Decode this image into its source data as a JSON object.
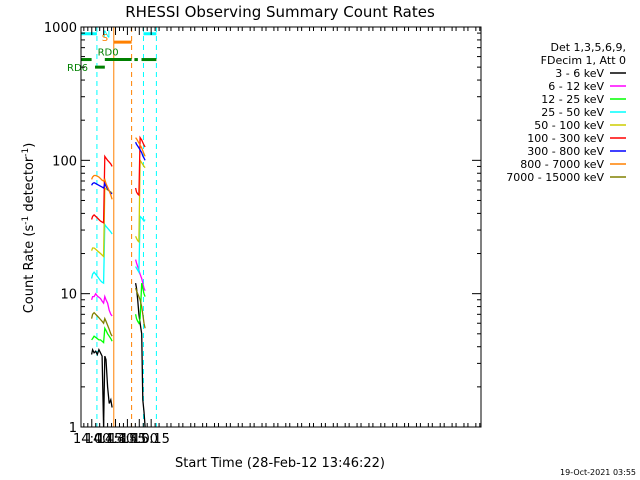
{
  "chart_data": {
    "type": "line",
    "title": "RHESSI Observing Summary Count Rates",
    "xlabel": "Start Time (28-Feb-12 13:46:22)",
    "ylabel_main": "Count Rate (s",
    "ylabel_sup1": "-1",
    "ylabel_mid": " detector",
    "ylabel_sup2": "-1",
    "ylabel_end": ")",
    "yscale": "log",
    "ylim": [
      1,
      1000
    ],
    "xlim_minutes": [
      826.4,
      1331.5
    ],
    "x_ticks": [
      {
        "label": "14:00",
        "minute": 840
      },
      {
        "label": "14:15",
        "minute": 855
      },
      {
        "label": "14:30",
        "minute": 870
      },
      {
        "label": "14:45",
        "minute": 885
      },
      {
        "label": "15:00",
        "minute": 900
      },
      {
        "label": "15:15",
        "minute": 915
      }
    ],
    "y_ticks": [
      {
        "label": "1",
        "value": 1
      },
      {
        "label": "10",
        "value": 10
      },
      {
        "label": "100",
        "value": 100
      },
      {
        "label": "1000",
        "value": 1000
      }
    ],
    "legend": {
      "header1": "Det 1,3,5,6,9,",
      "header2": "FDecim 1, Att 0",
      "placement": "right"
    },
    "series": [
      {
        "name": "3 - 6 keV",
        "color": "#000000",
        "points": [
          [
            839.8,
            3.5
          ],
          [
            841,
            3.8
          ],
          [
            843,
            3.6
          ],
          [
            845,
            3.7
          ],
          [
            847,
            3.5
          ],
          [
            849,
            3.8
          ],
          [
            851,
            3.6
          ],
          [
            853,
            3.4
          ],
          [
            855,
            1.0
          ],
          [
            856.5,
            3.4
          ],
          [
            858,
            3.2
          ],
          [
            860,
            2.0
          ],
          [
            862,
            1.5
          ],
          [
            864,
            1.6
          ],
          [
            865.7,
            1.4
          ],
          [
            895.3,
            12
          ],
          [
            896.5,
            11
          ],
          [
            898,
            9
          ],
          [
            899.5,
            7
          ],
          [
            901,
            6
          ],
          [
            903,
            5
          ],
          [
            904.5,
            1.6
          ],
          [
            906,
            1.3
          ],
          [
            907.3,
            1.0
          ]
        ]
      },
      {
        "name": "6 - 12 keV",
        "color": "#ff00ff",
        "points": [
          [
            839.8,
            9
          ],
          [
            841,
            9.5
          ],
          [
            843,
            9.5
          ],
          [
            845,
            10
          ],
          [
            847,
            9.6
          ],
          [
            849,
            9.4
          ],
          [
            851,
            9.2
          ],
          [
            853,
            8.8
          ],
          [
            855,
            8.5
          ],
          [
            856.5,
            9.5
          ],
          [
            858,
            9
          ],
          [
            860,
            8.5
          ],
          [
            862,
            7.5
          ],
          [
            864,
            7
          ],
          [
            865.7,
            6.8
          ],
          [
            895.3,
            18
          ],
          [
            896.5,
            17
          ],
          [
            898,
            16
          ],
          [
            899.5,
            15
          ],
          [
            901,
            14
          ],
          [
            903,
            13
          ],
          [
            904.5,
            12
          ],
          [
            906,
            11
          ],
          [
            907.3,
            10.5
          ]
        ]
      },
      {
        "name": "12 - 25 keV",
        "color": "#00ff00",
        "points": [
          [
            839.8,
            4.5
          ],
          [
            841,
            4.6
          ],
          [
            843,
            4.8
          ],
          [
            845,
            4.7
          ],
          [
            847,
            4.6
          ],
          [
            849,
            4.5
          ],
          [
            851,
            4.5
          ],
          [
            853,
            4.4
          ],
          [
            855,
            4.3
          ],
          [
            856.5,
            5.5
          ],
          [
            858,
            5.3
          ],
          [
            860,
            5
          ],
          [
            862,
            4.8
          ],
          [
            864,
            4.6
          ],
          [
            865.7,
            4.4
          ],
          [
            895.3,
            7
          ],
          [
            896.5,
            6.5
          ],
          [
            898,
            6.2
          ],
          [
            899.5,
            6
          ],
          [
            901,
            6.5
          ],
          [
            903,
            12
          ],
          [
            904.5,
            11
          ],
          [
            906,
            10
          ],
          [
            907.3,
            9.5
          ]
        ]
      },
      {
        "name": "25 - 50 keV",
        "color": "#00ffff",
        "points": [
          [
            839.8,
            13
          ],
          [
            841,
            14
          ],
          [
            843,
            14.5
          ],
          [
            845,
            14
          ],
          [
            847,
            13.5
          ],
          [
            849,
            13
          ],
          [
            851,
            12.5
          ],
          [
            853,
            12.2
          ],
          [
            855,
            12
          ],
          [
            856.5,
            33
          ],
          [
            858,
            32
          ],
          [
            860,
            31
          ],
          [
            862,
            30
          ],
          [
            864,
            29
          ],
          [
            865.7,
            28
          ],
          [
            895.3,
            16
          ],
          [
            896.5,
            15.5
          ],
          [
            898,
            15
          ],
          [
            899.5,
            14.5
          ],
          [
            901,
            38
          ],
          [
            903,
            37
          ],
          [
            904.5,
            36
          ],
          [
            906,
            35
          ],
          [
            907.3,
            36
          ]
        ]
      },
      {
        "name": "50 - 100 keV",
        "color": "#cccc00",
        "points": [
          [
            839.8,
            21
          ],
          [
            841,
            22
          ],
          [
            843,
            22
          ],
          [
            845,
            21.5
          ],
          [
            847,
            21
          ],
          [
            849,
            20.5
          ],
          [
            851,
            20
          ],
          [
            853,
            19.5
          ],
          [
            855,
            19
          ],
          [
            856.5,
            62
          ],
          [
            858,
            61
          ],
          [
            860,
            60
          ],
          [
            862,
            59
          ],
          [
            864,
            58
          ],
          [
            865.7,
            57
          ],
          [
            895.3,
            27
          ],
          [
            896.5,
            26
          ],
          [
            898,
            25
          ],
          [
            899.5,
            24.5
          ],
          [
            901,
            100
          ],
          [
            903,
            96
          ],
          [
            904.5,
            93
          ],
          [
            906,
            90
          ],
          [
            907.3,
            88
          ]
        ]
      },
      {
        "name": "100 - 300 keV",
        "color": "#ff0000",
        "points": [
          [
            839.8,
            36
          ],
          [
            841,
            38
          ],
          [
            843,
            39
          ],
          [
            845,
            38
          ],
          [
            847,
            37
          ],
          [
            849,
            36
          ],
          [
            851,
            35
          ],
          [
            853,
            34.5
          ],
          [
            855,
            34
          ],
          [
            856.5,
            107
          ],
          [
            858,
            104
          ],
          [
            860,
            100
          ],
          [
            862,
            97
          ],
          [
            864,
            94
          ],
          [
            865.7,
            90
          ],
          [
            895.3,
            62
          ],
          [
            896.5,
            58
          ],
          [
            898,
            56
          ],
          [
            899.5,
            55
          ],
          [
            901,
            148
          ],
          [
            903,
            142
          ],
          [
            904.5,
            136
          ],
          [
            906,
            130
          ],
          [
            907.3,
            126
          ]
        ]
      },
      {
        "name": "300 - 800 keV",
        "color": "#0000ff",
        "points": [
          [
            839.8,
            65
          ],
          [
            841,
            67
          ],
          [
            843,
            68
          ],
          [
            845,
            67
          ],
          [
            847,
            66
          ],
          [
            849,
            65
          ],
          [
            851,
            64
          ],
          [
            853,
            63
          ],
          [
            855,
            62
          ],
          [
            856.5,
            67
          ],
          [
            858,
            64
          ],
          [
            860,
            61
          ],
          [
            862,
            59
          ],
          [
            864,
            57
          ],
          [
            865.7,
            56
          ],
          [
            895.3,
            137
          ],
          [
            896.5,
            132
          ],
          [
            898,
            128
          ],
          [
            899.5,
            124
          ],
          [
            901,
            120
          ],
          [
            903,
            114
          ],
          [
            904.5,
            108
          ],
          [
            906,
            104
          ],
          [
            907.3,
            100
          ]
        ]
      },
      {
        "name": "800 - 7000 keV",
        "color": "#ff8000",
        "points": [
          [
            839.8,
            72
          ],
          [
            841,
            75
          ],
          [
            843,
            77
          ],
          [
            845,
            77
          ],
          [
            847,
            76
          ],
          [
            849,
            75
          ],
          [
            851,
            73
          ],
          [
            853,
            71
          ],
          [
            855,
            70
          ],
          [
            856.5,
            72
          ],
          [
            858,
            67
          ],
          [
            860,
            63
          ],
          [
            862,
            59
          ],
          [
            864,
            55
          ],
          [
            865.7,
            51
          ],
          [
            895.3,
            148
          ],
          [
            896.5,
            145
          ],
          [
            898,
            140
          ],
          [
            899.5,
            135
          ],
          [
            901,
            130
          ],
          [
            903,
            124
          ],
          [
            904.5,
            118
          ],
          [
            906,
            112
          ],
          [
            907.3,
            107
          ]
        ]
      },
      {
        "name": "7000 - 15000 keV",
        "color": "#808000",
        "points": [
          [
            839.8,
            6.5
          ],
          [
            841,
            7
          ],
          [
            843,
            7.2
          ],
          [
            845,
            7
          ],
          [
            847,
            6.8
          ],
          [
            849,
            6.6
          ],
          [
            851,
            6.4
          ],
          [
            853,
            6.2
          ],
          [
            855,
            6.0
          ],
          [
            856.5,
            6.5
          ],
          [
            858,
            6.2
          ],
          [
            860,
            5.8
          ],
          [
            862,
            5.4
          ],
          [
            864,
            5.0
          ],
          [
            865.7,
            4.8
          ],
          [
            895.3,
            11
          ],
          [
            896.5,
            10.5
          ],
          [
            898,
            10
          ],
          [
            899.5,
            9.5
          ],
          [
            901,
            9
          ],
          [
            903,
            8
          ],
          [
            904.5,
            7
          ],
          [
            906,
            6
          ],
          [
            907.3,
            5.5
          ]
        ]
      }
    ],
    "flags": [
      {
        "label": "N",
        "color": "#00ffff",
        "line_value": 890,
        "segments": [
          [
            826.4,
            846.5
          ],
          [
            905.3,
            921.6
          ]
        ],
        "vlines": [
          846.5,
          905.3,
          921.6
        ],
        "dashed": true
      },
      {
        "label": "S",
        "color": "#ff8000",
        "line_value": 770,
        "segments": [
          [
            867.8,
            890.3
          ]
        ],
        "vlines": [
          867.8,
          890.3
        ],
        "dashed_at": [
          890.3
        ]
      },
      {
        "label": "RD0",
        "color": "#008000",
        "line_value": 570,
        "segments": [
          [
            826.4,
            839.8
          ],
          [
            856.5,
            890.3
          ],
          [
            893.8,
            898.2
          ],
          [
            902.8,
            921.6
          ]
        ]
      },
      {
        "label": "RD6",
        "color": "#008000",
        "line_value": 500,
        "segments": [
          [
            844.1,
            856.5
          ]
        ]
      }
    ],
    "timestamp": "19-Oct-2021 03:55"
  }
}
